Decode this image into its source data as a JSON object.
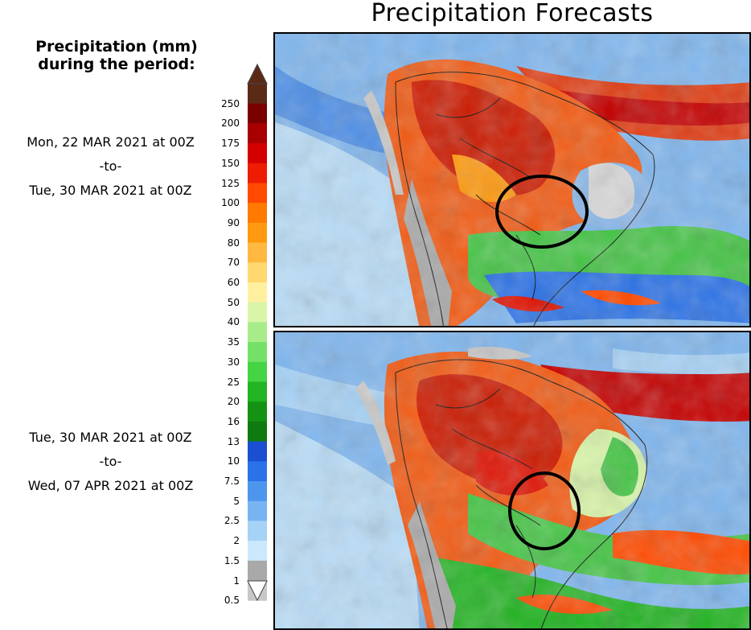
{
  "title": "Precipitation Forecasts",
  "legend": {
    "title_line1": "Precipitation (mm)",
    "title_line2": "during the period:",
    "ticks": [
      "250",
      "200",
      "175",
      "150",
      "125",
      "100",
      "90",
      "80",
      "70",
      "60",
      "50",
      "40",
      "35",
      "30",
      "25",
      "20",
      "16",
      "13",
      "10",
      "7.5",
      "5",
      "2.5",
      "2",
      "1.5",
      "1",
      "0.5"
    ],
    "colors": [
      "#5b2a17",
      "#7a0000",
      "#a80000",
      "#d40000",
      "#ee1c00",
      "#ff4a00",
      "#ff7a00",
      "#ff9a10",
      "#ffb840",
      "#ffd870",
      "#fff0a0",
      "#d8f5a8",
      "#a8ec8a",
      "#74e068",
      "#44d444",
      "#22b422",
      "#139213",
      "#0f7a0f",
      "#1a4fd0",
      "#2a72e8",
      "#4d96ee",
      "#79b4f2",
      "#a6d2f6",
      "#cbe9fb",
      "#a9a9a9",
      "#c8c8c8"
    ]
  },
  "periods": [
    {
      "from": "Mon, 22 MAR 2021 at 00Z",
      "sep": "-to-",
      "to": "Tue, 30 MAR 2021 at 00Z"
    },
    {
      "from": "Tue, 30 MAR 2021 at 00Z",
      "sep": "-to-",
      "to": "Wed, 07 APR 2021 at 00Z"
    }
  ],
  "maps": [
    {
      "name": "forecast-map-period-1",
      "highlight": "circle around southern Bolivia / Paraguay / west Mato Grosso do Sul"
    },
    {
      "name": "forecast-map-period-2",
      "highlight": "circle around Paraguay / southwest Brazil"
    }
  ]
}
